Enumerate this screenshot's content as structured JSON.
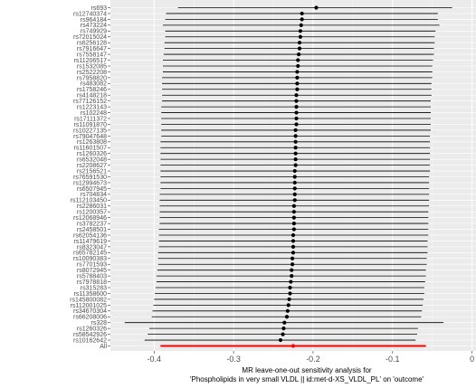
{
  "chart_data": {
    "type": "forest",
    "title": "",
    "xlabel_lines": [
      "MR leave-one-out sensitivity analysis for",
      "'Phospholipids in very small VLDL || id:met-d-XS_VLDL_PL' on 'outcome'"
    ],
    "ylabel": "",
    "xlim": [
      -0.455,
      0.005
    ],
    "xticks": [
      -0.4,
      -0.3,
      -0.2,
      -0.1,
      0
    ],
    "xtick_labels": [
      "-0.4",
      "-0.3",
      "-0.2",
      "-0.1",
      "0"
    ],
    "grid": true,
    "colors": {
      "panel": "#ebebeb",
      "grid_major": "#ffffff",
      "grid_minor": "#f5f5f5",
      "snp": "#000000",
      "overall": "#ff0000"
    },
    "rows": [
      {
        "label": "rs693",
        "estimate": -0.196,
        "lower": -0.37,
        "upper": -0.025
      },
      {
        "label": "rs12740374",
        "estimate": -0.214,
        "lower": -0.385,
        "upper": -0.043
      },
      {
        "label": "rs964184",
        "estimate": -0.214,
        "lower": -0.386,
        "upper": -0.043
      },
      {
        "label": "rs473224",
        "estimate": -0.215,
        "lower": -0.389,
        "upper": -0.041
      },
      {
        "label": "rs749929",
        "estimate": -0.216,
        "lower": -0.386,
        "upper": -0.046
      },
      {
        "label": "rs72015024",
        "estimate": -0.216,
        "lower": -0.386,
        "upper": -0.047
      },
      {
        "label": "rs6256128",
        "estimate": -0.217,
        "lower": -0.387,
        "upper": -0.047
      },
      {
        "label": "rs7916647",
        "estimate": -0.217,
        "lower": -0.387,
        "upper": -0.048
      },
      {
        "label": "rs7558147",
        "estimate": -0.218,
        "lower": -0.388,
        "upper": -0.048
      },
      {
        "label": "rs11206517",
        "estimate": -0.219,
        "lower": -0.389,
        "upper": -0.049
      },
      {
        "label": "rs1532085",
        "estimate": -0.219,
        "lower": -0.389,
        "upper": -0.05
      },
      {
        "label": "rs2522208",
        "estimate": -0.22,
        "lower": -0.389,
        "upper": -0.05
      },
      {
        "label": "rs7958820",
        "estimate": -0.22,
        "lower": -0.39,
        "upper": -0.05
      },
      {
        "label": "rs483082",
        "estimate": -0.22,
        "lower": -0.39,
        "upper": -0.051
      },
      {
        "label": "rs1758246",
        "estimate": -0.22,
        "lower": -0.39,
        "upper": -0.051
      },
      {
        "label": "rs4148218",
        "estimate": -0.221,
        "lower": -0.39,
        "upper": -0.051
      },
      {
        "label": "rs77126152",
        "estimate": -0.221,
        "lower": -0.39,
        "upper": -0.052
      },
      {
        "label": "rs1223143",
        "estimate": -0.221,
        "lower": -0.391,
        "upper": -0.052
      },
      {
        "label": "rs102248",
        "estimate": -0.221,
        "lower": -0.391,
        "upper": -0.052
      },
      {
        "label": "rs17111372",
        "estimate": -0.221,
        "lower": -0.391,
        "upper": -0.052
      },
      {
        "label": "rs11091870",
        "estimate": -0.221,
        "lower": -0.391,
        "upper": -0.052
      },
      {
        "label": "rs10227135",
        "estimate": -0.222,
        "lower": -0.391,
        "upper": -0.052
      },
      {
        "label": "rs79047648",
        "estimate": -0.222,
        "lower": -0.391,
        "upper": -0.053
      },
      {
        "label": "rs1263808",
        "estimate": -0.222,
        "lower": -0.392,
        "upper": -0.053
      },
      {
        "label": "rs11601507",
        "estimate": -0.222,
        "lower": -0.392,
        "upper": -0.053
      },
      {
        "label": "rs1260326",
        "estimate": -0.222,
        "lower": -0.392,
        "upper": -0.053
      },
      {
        "label": "rs6532048",
        "estimate": -0.222,
        "lower": -0.392,
        "upper": -0.053
      },
      {
        "label": "rs2208627",
        "estimate": -0.222,
        "lower": -0.392,
        "upper": -0.053
      },
      {
        "label": "rs2156521",
        "estimate": -0.223,
        "lower": -0.392,
        "upper": -0.053
      },
      {
        "label": "rs76591530",
        "estimate": -0.223,
        "lower": -0.392,
        "upper": -0.054
      },
      {
        "label": "rs12994673",
        "estimate": -0.223,
        "lower": -0.392,
        "upper": -0.054
      },
      {
        "label": "rs6507945",
        "estimate": -0.223,
        "lower": -0.392,
        "upper": -0.054
      },
      {
        "label": "rs704834",
        "estimate": -0.223,
        "lower": -0.393,
        "upper": -0.054
      },
      {
        "label": "rs112103450",
        "estimate": -0.223,
        "lower": -0.393,
        "upper": -0.054
      },
      {
        "label": "rs2286031",
        "estimate": -0.224,
        "lower": -0.393,
        "upper": -0.054
      },
      {
        "label": "rs1200357",
        "estimate": -0.224,
        "lower": -0.393,
        "upper": -0.055
      },
      {
        "label": "rs12068946",
        "estimate": -0.224,
        "lower": -0.393,
        "upper": -0.055
      },
      {
        "label": "rs3782237",
        "estimate": -0.224,
        "lower": -0.393,
        "upper": -0.055
      },
      {
        "label": "rs2458501",
        "estimate": -0.224,
        "lower": -0.394,
        "upper": -0.055
      },
      {
        "label": "rs62054136",
        "estimate": -0.225,
        "lower": -0.394,
        "upper": -0.055
      },
      {
        "label": "rs11479619",
        "estimate": -0.225,
        "lower": -0.394,
        "upper": -0.056
      },
      {
        "label": "rs8323047",
        "estimate": -0.225,
        "lower": -0.394,
        "upper": -0.056
      },
      {
        "label": "rs65782145",
        "estimate": -0.225,
        "lower": -0.395,
        "upper": -0.056
      },
      {
        "label": "rs10090383",
        "estimate": -0.226,
        "lower": -0.395,
        "upper": -0.057
      },
      {
        "label": "rs7701593",
        "estimate": -0.226,
        "lower": -0.395,
        "upper": -0.057
      },
      {
        "label": "rs8072945",
        "estimate": -0.227,
        "lower": -0.396,
        "upper": -0.058
      },
      {
        "label": "rs5788403",
        "estimate": -0.227,
        "lower": -0.397,
        "upper": -0.058
      },
      {
        "label": "rs7978818",
        "estimate": -0.228,
        "lower": -0.397,
        "upper": -0.059
      },
      {
        "label": "rs315283",
        "estimate": -0.229,
        "lower": -0.398,
        "upper": -0.06
      },
      {
        "label": "rs11358600",
        "estimate": -0.229,
        "lower": -0.399,
        "upper": -0.06
      },
      {
        "label": "rs145800082",
        "estimate": -0.23,
        "lower": -0.4,
        "upper": -0.061
      },
      {
        "label": "rs112001025",
        "estimate": -0.231,
        "lower": -0.401,
        "upper": -0.062
      },
      {
        "label": "rs34670304",
        "estimate": -0.232,
        "lower": -0.402,
        "upper": -0.063
      },
      {
        "label": "rs66208006",
        "estimate": -0.233,
        "lower": -0.403,
        "upper": -0.064
      },
      {
        "label": "rs328",
        "estimate": -0.236,
        "lower": -0.437,
        "upper": -0.036
      },
      {
        "label": "rs1260326",
        "estimate": -0.237,
        "lower": -0.406,
        "upper": -0.068
      },
      {
        "label": "rs58542926",
        "estimate": -0.238,
        "lower": -0.408,
        "upper": -0.069
      },
      {
        "label": "rs10162642",
        "estimate": -0.241,
        "lower": -0.412,
        "upper": -0.071
      }
    ],
    "overall": {
      "label": "All",
      "estimate": -0.225,
      "lower": -0.392,
      "upper": -0.058
    }
  }
}
